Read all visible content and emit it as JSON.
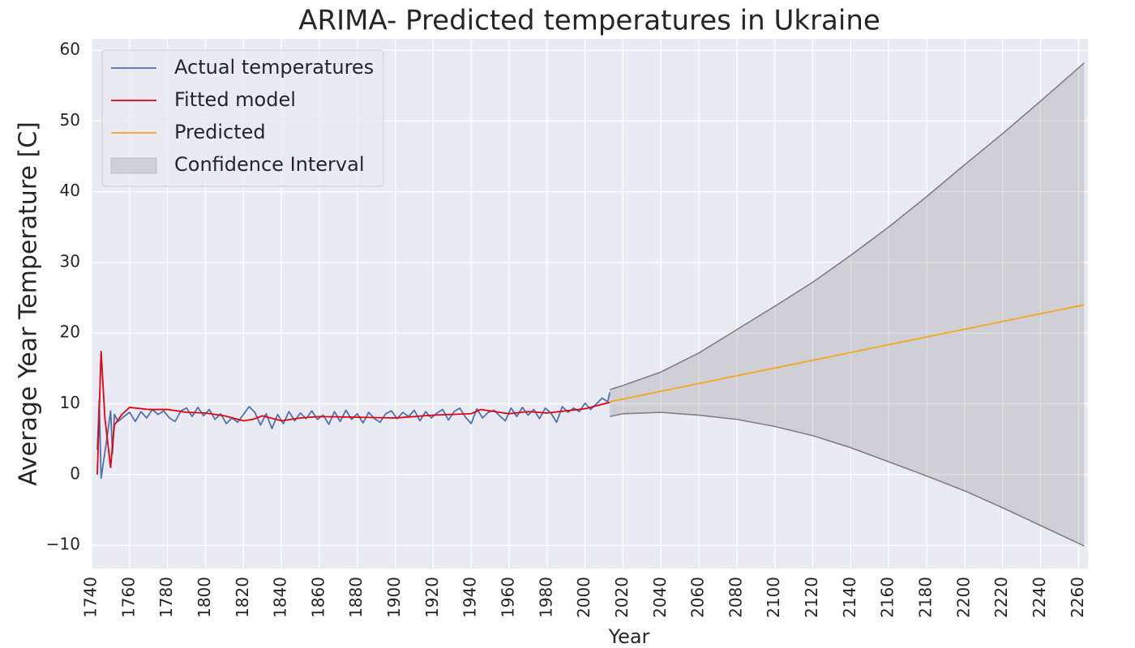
{
  "chart_data": {
    "type": "line",
    "title": "ARIMA- Predicted temperatures in Ukraine",
    "xlabel": "Year",
    "ylabel": "Average Year Temperature [C]",
    "xlim": [
      1740,
      2265
    ],
    "ylim": [
      -13.3,
      61.6
    ],
    "xticks": [
      1740,
      1760,
      1780,
      1800,
      1820,
      1840,
      1860,
      1880,
      1900,
      1920,
      1940,
      1960,
      1980,
      2000,
      2020,
      2040,
      2060,
      2080,
      2100,
      2120,
      2140,
      2160,
      2180,
      2200,
      2220,
      2240,
      2260
    ],
    "yticks": [
      {
        "value": -10,
        "label": "−10"
      },
      0,
      10,
      20,
      30,
      40,
      50,
      60
    ],
    "grid": true,
    "legend": "upper left",
    "series": [
      {
        "name": "Actual temperatures",
        "color": "#4c72b0",
        "x": [
          1743,
          1744,
          1745,
          1748,
          1750,
          1751,
          1752,
          1754,
          1757,
          1760,
          1763,
          1766,
          1769,
          1772,
          1775,
          1778,
          1781,
          1784,
          1787,
          1790,
          1793,
          1796,
          1799,
          1802,
          1805,
          1808,
          1811,
          1814,
          1817,
          1820,
          1823,
          1826,
          1829,
          1832,
          1835,
          1838,
          1841,
          1844,
          1847,
          1850,
          1853,
          1856,
          1859,
          1862,
          1865,
          1868,
          1871,
          1874,
          1877,
          1880,
          1883,
          1886,
          1889,
          1892,
          1895,
          1898,
          1901,
          1904,
          1907,
          1910,
          1913,
          1916,
          1919,
          1922,
          1925,
          1928,
          1931,
          1934,
          1937,
          1940,
          1943,
          1946,
          1949,
          1952,
          1955,
          1958,
          1961,
          1964,
          1967,
          1970,
          1973,
          1976,
          1979,
          1982,
          1985,
          1988,
          1991,
          1994,
          1997,
          2000,
          2003,
          2006,
          2009,
          2012,
          2013
        ],
        "values": [
          3.5,
          10.5,
          -0.5,
          5,
          9,
          3,
          8.5,
          7.5,
          8.2,
          8.8,
          7.5,
          8.9,
          8.0,
          9.2,
          8.5,
          9.0,
          8.0,
          7.5,
          9.0,
          9.4,
          8.2,
          9.5,
          8.3,
          9.2,
          7.8,
          8.6,
          7.2,
          8.0,
          7.4,
          8.5,
          9.6,
          8.8,
          7.0,
          8.6,
          6.5,
          8.5,
          7.2,
          8.9,
          7.6,
          8.7,
          7.9,
          9.0,
          7.8,
          8.4,
          7.1,
          8.9,
          7.5,
          9.1,
          7.8,
          8.6,
          7.3,
          8.8,
          7.9,
          7.4,
          8.6,
          9.0,
          7.9,
          8.8,
          8.2,
          9.1,
          7.6,
          8.9,
          8.0,
          8.7,
          9.2,
          7.7,
          8.9,
          9.4,
          8.1,
          7.2,
          9.3,
          8.0,
          8.8,
          9.1,
          8.3,
          7.6,
          9.4,
          8.2,
          9.5,
          8.4,
          9.2,
          7.9,
          9.4,
          8.7,
          7.4,
          9.6,
          8.8,
          9.4,
          8.9,
          10.1,
          9.2,
          10.0,
          10.8,
          10.3,
          11.6
        ]
      },
      {
        "name": "Fitted model",
        "color": "#e8000b",
        "x": [
          1743,
          1745,
          1747,
          1750,
          1752,
          1756,
          1760,
          1770,
          1780,
          1790,
          1800,
          1810,
          1820,
          1825,
          1830,
          1840,
          1850,
          1860,
          1880,
          1900,
          1920,
          1940,
          1945,
          1960,
          1970,
          1980,
          1990,
          2000,
          2013
        ],
        "values": [
          0,
          17.4,
          8,
          1,
          7,
          8.5,
          9.5,
          9.2,
          9.2,
          8.8,
          8.7,
          8.3,
          7.6,
          7.8,
          8.3,
          7.6,
          8.0,
          8.2,
          8.1,
          8.0,
          8.4,
          8.6,
          9.2,
          8.6,
          8.9,
          8.7,
          9.0,
          9.3,
          10.2
        ]
      },
      {
        "name": "Predicted",
        "color": "#f5a623",
        "x": [
          2013,
          2263
        ],
        "values": [
          10.3,
          24.0
        ]
      }
    ],
    "band": {
      "name": "Confidence Interval",
      "color": "#808080",
      "x": [
        2013,
        2020,
        2040,
        2060,
        2080,
        2100,
        2120,
        2140,
        2160,
        2180,
        2200,
        2220,
        2240,
        2263
      ],
      "upper": [
        12.0,
        12.6,
        14.5,
        17.2,
        20.5,
        23.8,
        27.2,
        31.0,
        35.0,
        39.3,
        43.8,
        48.2,
        52.8,
        58.2
      ],
      "lower": [
        8.2,
        8.6,
        8.8,
        8.4,
        7.8,
        6.8,
        5.5,
        3.8,
        1.8,
        -0.2,
        -2.3,
        -4.7,
        -7.2,
        -10.1
      ]
    }
  }
}
